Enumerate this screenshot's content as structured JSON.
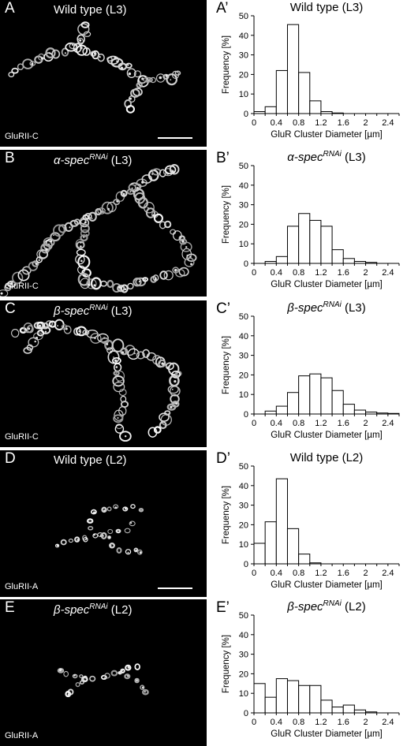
{
  "panels": [
    {
      "image_letter": "A",
      "image_title_plain": "Wild type (L3)",
      "image_title_gene": "",
      "image_title_sup": "",
      "image_title_suffix": "",
      "stain": "GluRII-C",
      "scale_bar": true,
      "chart_letter": "A’"
    },
    {
      "image_letter": "B",
      "image_title_plain": "",
      "image_title_gene": "α-spec",
      "image_title_sup": "RNAi",
      "image_title_suffix": " (L3)",
      "stain": "GluRII-C",
      "scale_bar": false,
      "chart_letter": "B’"
    },
    {
      "image_letter": "C",
      "image_title_plain": "",
      "image_title_gene": "β-spec",
      "image_title_sup": "RNAi",
      "image_title_suffix": " (L3)",
      "stain": "GluRII-C",
      "scale_bar": false,
      "chart_letter": "C’"
    },
    {
      "image_letter": "D",
      "image_title_plain": "Wild type (L2)",
      "image_title_gene": "",
      "image_title_sup": "",
      "image_title_suffix": "",
      "stain": "GluRII-A",
      "scale_bar": true,
      "chart_letter": "D’"
    },
    {
      "image_letter": "E",
      "image_title_plain": "",
      "image_title_gene": "β-spec",
      "image_title_sup": "RNAi",
      "image_title_suffix": " (L2)",
      "stain": "GluRII-A",
      "scale_bar": false,
      "chart_letter": "E’"
    }
  ],
  "chart_data": [
    {
      "type": "bar",
      "title_plain": "Wild type (L3)",
      "title_gene": "",
      "title_sup": "",
      "title_suffix": "",
      "xlabel": "GluR Cluster Diameter [µm]",
      "ylabel": "Frequency [%]",
      "xlim": [
        0,
        2.6
      ],
      "ylim": [
        0,
        50
      ],
      "bin_width": 0.2,
      "xticks": [
        "0",
        "0.4",
        "0.8",
        "1.2",
        "1.6",
        "2",
        "2.4"
      ],
      "yticks": [
        "0",
        "10",
        "20",
        "30",
        "40",
        "50"
      ],
      "bin_starts": [
        0,
        0.2,
        0.4,
        0.6,
        0.8,
        1.0,
        1.2,
        1.4
      ],
      "values": [
        1,
        3.5,
        22,
        45.5,
        21,
        6.5,
        1,
        0.3
      ]
    },
    {
      "type": "bar",
      "title_plain": "",
      "title_gene": "α-spec",
      "title_sup": "RNAi",
      "title_suffix": " (L3)",
      "xlabel": "GluR Cluster Diameter [µm]",
      "ylabel": "Frequency [%]",
      "xlim": [
        0,
        2.6
      ],
      "ylim": [
        0,
        50
      ],
      "bin_width": 0.2,
      "xticks": [
        "0",
        "0.4",
        "0.8",
        "1.2",
        "1.6",
        "2",
        "2.4"
      ],
      "yticks": [
        "0",
        "10",
        "20",
        "30",
        "40",
        "50"
      ],
      "bin_starts": [
        0.2,
        0.4,
        0.6,
        0.8,
        1.0,
        1.2,
        1.4,
        1.6,
        1.8,
        2.0
      ],
      "values": [
        1,
        3.5,
        19,
        25.5,
        22,
        19,
        7,
        2.5,
        1,
        0.5
      ]
    },
    {
      "type": "bar",
      "title_plain": "",
      "title_gene": "β-spec",
      "title_sup": "RNAi",
      "title_suffix": " (L3)",
      "xlabel": "GluR Cluster Diameter [µm]",
      "ylabel": "Frequency [%]",
      "xlim": [
        0,
        2.6
      ],
      "ylim": [
        0,
        50
      ],
      "bin_width": 0.2,
      "xticks": [
        "0",
        "0.4",
        "0.8",
        "1.2",
        "1.6",
        "2",
        "2.4"
      ],
      "yticks": [
        "0",
        "10",
        "20",
        "30",
        "40",
        "50"
      ],
      "bin_starts": [
        0.2,
        0.4,
        0.6,
        0.8,
        1.0,
        1.2,
        1.4,
        1.6,
        1.8,
        2.0,
        2.2,
        2.4
      ],
      "values": [
        1.5,
        4,
        11,
        19.5,
        20.5,
        18.5,
        12,
        5,
        2,
        1,
        0.5,
        0.3
      ]
    },
    {
      "type": "bar",
      "title_plain": "Wild type (L2)",
      "title_gene": "",
      "title_sup": "",
      "title_suffix": "",
      "xlabel": "GluR Cluster Diameter [µm]",
      "ylabel": "Frequency [%]",
      "xlim": [
        0,
        2.6
      ],
      "ylim": [
        0,
        50
      ],
      "bin_width": 0.2,
      "xticks": [
        "0",
        "0.4",
        "0.8",
        "1.2",
        "1.6",
        "2",
        "2.4"
      ],
      "yticks": [
        "0",
        "10",
        "20",
        "30",
        "40",
        "50"
      ],
      "bin_starts": [
        0,
        0.2,
        0.4,
        0.6,
        0.8,
        1.0
      ],
      "values": [
        10.5,
        21.5,
        43.5,
        18,
        5,
        0.5
      ]
    },
    {
      "type": "bar",
      "title_plain": "",
      "title_gene": "β-spec",
      "title_sup": "RNAi",
      "title_suffix": " (L2)",
      "xlabel": "GluR Cluster Diameter [µm]",
      "ylabel": "Frequency [%]",
      "xlim": [
        0,
        2.6
      ],
      "ylim": [
        0,
        50
      ],
      "bin_width": 0.2,
      "xticks": [
        "0",
        "0.4",
        "0.8",
        "1.2",
        "1.6",
        "2",
        "2.4"
      ],
      "yticks": [
        "0",
        "10",
        "20",
        "30",
        "40",
        "50"
      ],
      "bin_starts": [
        0,
        0.2,
        0.4,
        0.6,
        0.8,
        1.0,
        1.2,
        1.4,
        1.6,
        1.8,
        2.0
      ],
      "values": [
        15,
        8,
        17.5,
        16.5,
        14,
        14,
        6.5,
        3,
        4,
        1.5,
        0.5
      ]
    }
  ]
}
